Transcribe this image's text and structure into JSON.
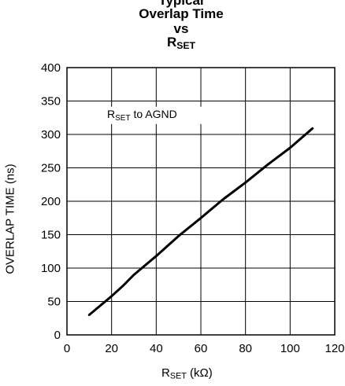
{
  "chart_data": {
    "type": "line",
    "title_line1": "Typical",
    "title_line2": "Overlap Time",
    "title_line3": "vs",
    "title_line4_main": "R",
    "title_line4_sub": "SET",
    "xlabel_main": "R",
    "xlabel_sub": "SET",
    "xlabel_rest": " (kΩ)",
    "ylabel": "OVERLAP TIME (ns)",
    "annotation_main": "R",
    "annotation_sub": "SET",
    "annotation_rest": " to AGND",
    "xlim": [
      0,
      120
    ],
    "ylim": [
      0,
      400
    ],
    "xticks": [
      0,
      20,
      40,
      60,
      80,
      100,
      120
    ],
    "yticks": [
      0,
      50,
      100,
      150,
      200,
      250,
      300,
      350,
      400
    ],
    "grid": true,
    "series": [
      {
        "x": [
          10,
          20,
          25,
          30,
          40,
          50,
          60,
          70,
          80,
          90,
          100,
          110
        ],
        "y": [
          30,
          58,
          73,
          90,
          118,
          148,
          175,
          203,
          228,
          255,
          280,
          309
        ]
      }
    ]
  }
}
